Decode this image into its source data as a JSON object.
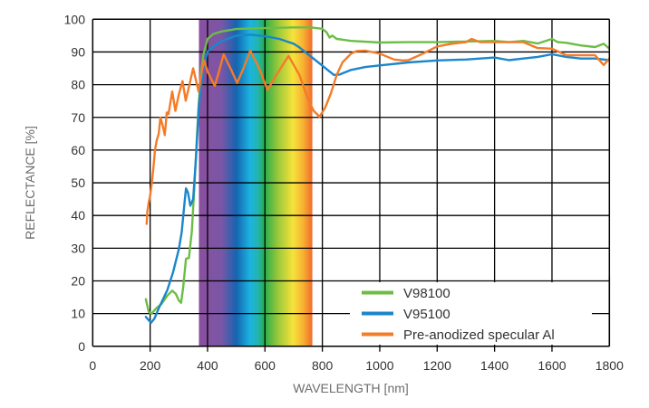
{
  "chart_data": {
    "type": "line",
    "title": "",
    "xlabel": "WAVELENGTH [nm]",
    "ylabel": "REFLECTANCE [%]",
    "xlim": [
      0,
      1800
    ],
    "ylim": [
      0,
      100
    ],
    "grid": true,
    "x_ticks": [
      0,
      200,
      400,
      600,
      800,
      1000,
      1200,
      1400,
      1600,
      1800
    ],
    "y_ticks": [
      0,
      10,
      20,
      30,
      40,
      50,
      60,
      70,
      80,
      90,
      100
    ],
    "x_tick_labels": [
      "0",
      "200",
      "400",
      "600",
      "800",
      "1000",
      "1200",
      "1400",
      "1600",
      "1800"
    ],
    "y_tick_labels": [
      "0",
      "10",
      "20",
      "30",
      "40",
      "50",
      "60",
      "70",
      "80",
      "90",
      "100"
    ],
    "legend_position": "bottom-right",
    "visible_spectrum_band": {
      "range_nm": [
        370,
        765
      ],
      "colors": [
        "#8b4f9f",
        "#7a56a6",
        "#1565b1",
        "#1cb3e0",
        "#22b5b0",
        "#2aae4a",
        "#9cc93b",
        "#f6e33a",
        "#f7b133",
        "#f26a2b"
      ]
    },
    "series": [
      {
        "name": "V98100",
        "color": "#6cbd45",
        "x": [
          185,
          195,
          205,
          220,
          240,
          260,
          277,
          290,
          300,
          308,
          315,
          325,
          335,
          345,
          355,
          362,
          368,
          375,
          385,
          400,
          420,
          450,
          500,
          550,
          600,
          650,
          700,
          760,
          800,
          815,
          825,
          835,
          850,
          900,
          1000,
          1100,
          1200,
          1300,
          1400,
          1450,
          1500,
          1550,
          1600,
          1620,
          1650,
          1700,
          1750,
          1780,
          1800
        ],
        "y": [
          14.4,
          10.5,
          10.0,
          11.5,
          13.0,
          15.5,
          17.0,
          16.0,
          14.0,
          13.3,
          18.0,
          26.8,
          27.0,
          35.0,
          50.0,
          62.0,
          72.0,
          82.0,
          89.0,
          94.0,
          95.5,
          96.3,
          97.0,
          97.2,
          97.3,
          97.4,
          97.5,
          97.5,
          97.1,
          96.0,
          94.4,
          95.0,
          94.0,
          93.4,
          92.9,
          93.0,
          93.0,
          93.2,
          93.4,
          93.0,
          93.4,
          92.6,
          94.0,
          93.0,
          92.8,
          92.0,
          91.5,
          92.5,
          91.0
        ]
      },
      {
        "name": "V95100",
        "color": "#1a86cb",
        "x": [
          185,
          195,
          203,
          215,
          230,
          260,
          280,
          300,
          310,
          320,
          325,
          332,
          340,
          350,
          360,
          370,
          385,
          400,
          425,
          450,
          500,
          550,
          600,
          650,
          700,
          720,
          760,
          800,
          840,
          860,
          900,
          950,
          1000,
          1100,
          1200,
          1300,
          1400,
          1450,
          1500,
          1550,
          1600,
          1650,
          1700,
          1750,
          1800
        ],
        "y": [
          9.0,
          8.0,
          7.2,
          8.5,
          11.6,
          17.2,
          22.7,
          29.7,
          35.0,
          44.0,
          48.3,
          47.0,
          43.0,
          45.0,
          58.0,
          74.0,
          85.0,
          90.1,
          92.0,
          93.4,
          95.0,
          95.3,
          94.8,
          94.0,
          92.5,
          91.4,
          88.6,
          85.8,
          83.0,
          83.1,
          84.5,
          85.4,
          85.9,
          86.8,
          87.4,
          87.7,
          88.3,
          87.5,
          88.0,
          88.5,
          89.3,
          88.5,
          88.0,
          88.0,
          87.5
        ]
      },
      {
        "name": "Pre-anodized specular Al",
        "color": "#f47b28",
        "x": [
          188,
          190,
          195,
          200,
          206,
          212,
          217,
          223,
          230,
          236,
          245,
          251,
          258,
          264,
          277,
          288,
          300,
          313,
          324,
          337,
          350,
          369,
          380,
          388,
          400,
          425,
          440,
          456,
          480,
          503,
          525,
          549,
          580,
          609,
          640,
          682,
          720,
          750,
          770,
          790,
          810,
          830,
          850,
          870,
          900,
          920,
          950,
          1000,
          1050,
          1080,
          1100,
          1150,
          1200,
          1250,
          1300,
          1320,
          1350,
          1400,
          1450,
          1500,
          1550,
          1600,
          1650,
          1700,
          1750,
          1780,
          1800
        ],
        "y": [
          37.4,
          41.0,
          44.0,
          46.0,
          50.0,
          55.0,
          60.0,
          63.0,
          65.0,
          70.0,
          67.0,
          64.6,
          71.5,
          71.0,
          77.9,
          72.0,
          77.0,
          81.1,
          75.1,
          80.0,
          85.0,
          77.9,
          84.0,
          87.4,
          84.0,
          79.6,
          84.0,
          89.3,
          85.0,
          80.5,
          85.0,
          90.4,
          85.0,
          78.4,
          83.0,
          88.8,
          83.0,
          75.6,
          72.0,
          70.2,
          73.0,
          77.4,
          83.0,
          86.8,
          89.5,
          90.3,
          90.4,
          89.5,
          87.7,
          87.4,
          87.5,
          89.5,
          91.7,
          92.5,
          93.0,
          94.0,
          93.0,
          93.0,
          93.0,
          93.0,
          91.2,
          91.0,
          89.0,
          89.0,
          89.0,
          86.0,
          88.0
        ]
      }
    ]
  }
}
